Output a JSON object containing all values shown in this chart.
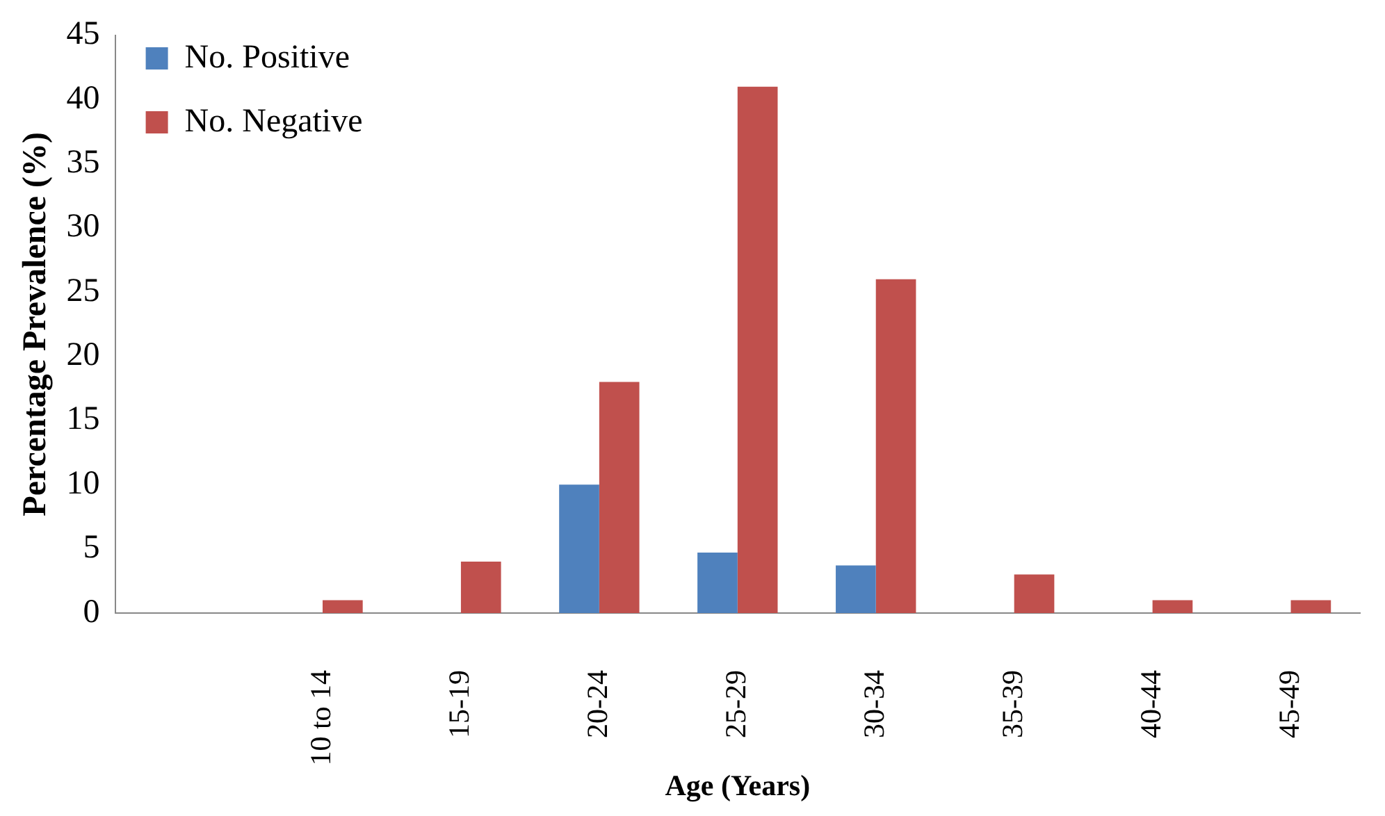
{
  "chart_data": {
    "type": "bar",
    "xlabel": "Age (Years)",
    "ylabel": "Percentage Prevalence (%)",
    "categories": [
      null,
      "10 to 14",
      "15-19",
      "20-24",
      "25-29",
      "30-34",
      "35-39",
      "40-44",
      "45-49"
    ],
    "series": [
      {
        "name": "No. Positive",
        "color": "#4f81bd",
        "values": [
          0,
          0,
          0,
          10,
          4.7,
          3.7,
          0,
          0,
          0
        ]
      },
      {
        "name": "No. Negative",
        "color": "#c0504d",
        "values": [
          0,
          1,
          4,
          18,
          41,
          26,
          3,
          1,
          1
        ]
      }
    ],
    "ylim": [
      0,
      45
    ],
    "yticks": [
      0,
      5,
      10,
      15,
      20,
      25,
      30,
      35,
      40,
      45
    ],
    "grid": false,
    "legend": "top left"
  }
}
